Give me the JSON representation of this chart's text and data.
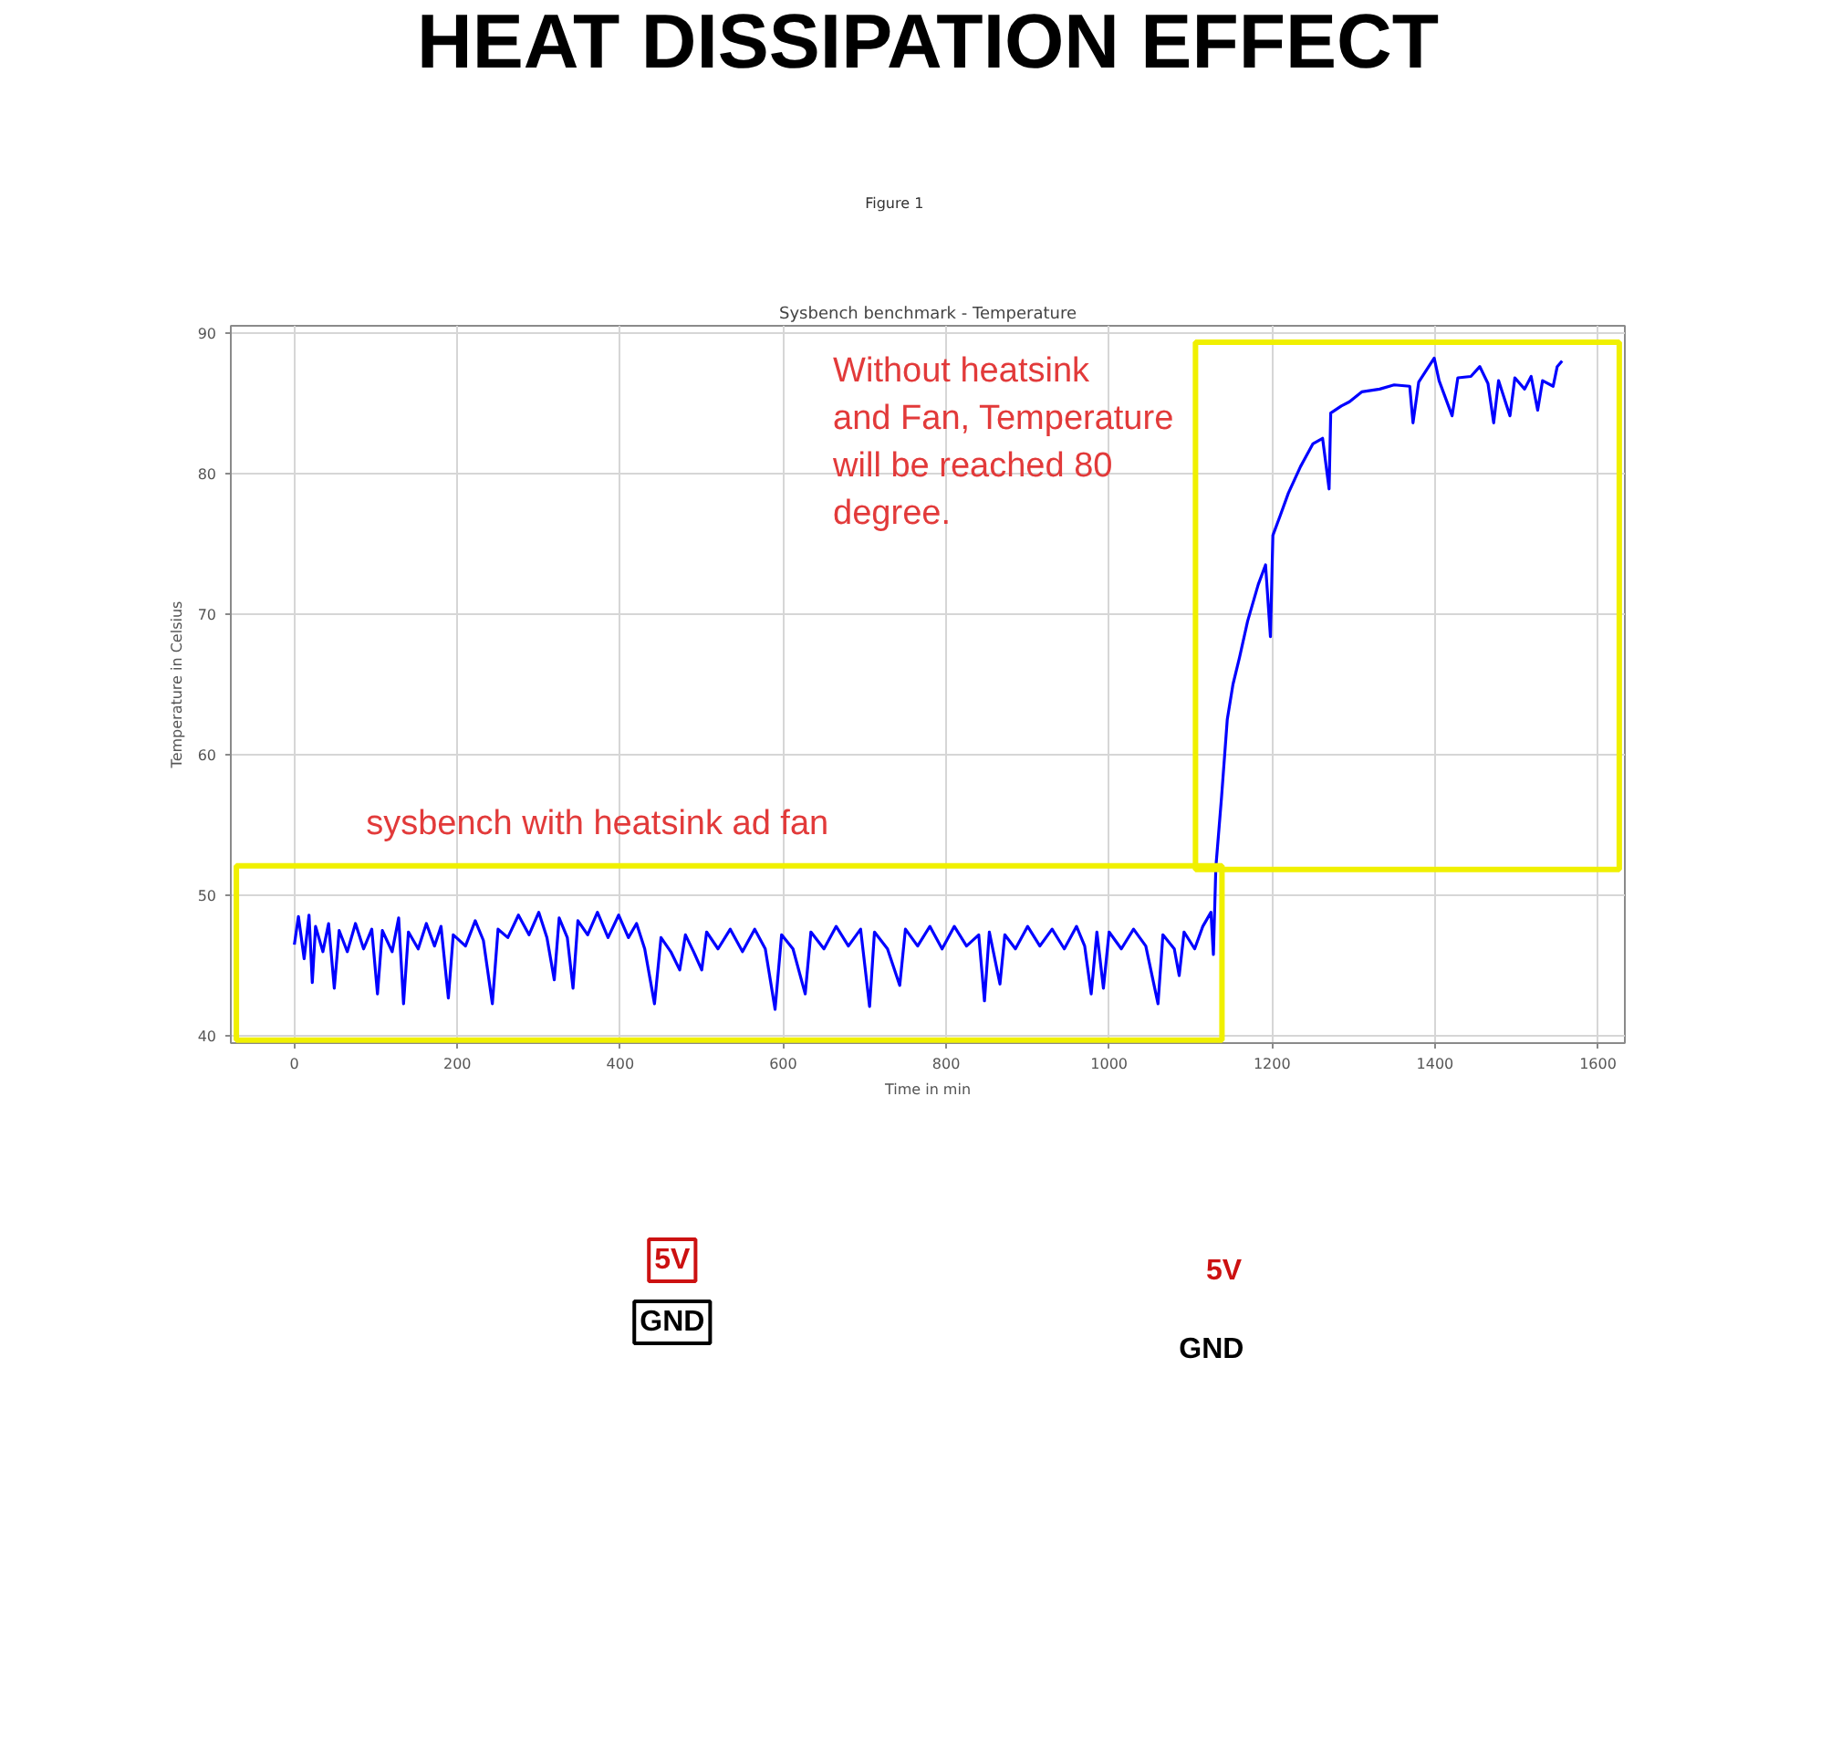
{
  "chart_data": {
    "type": "line",
    "title": "HEAT DISSIPATION EFFECT",
    "subtitle": "Sysbench benchmark - Temperature",
    "xlabel": "Time in min",
    "ylabel": "Temperature in Celsius",
    "annotations": [
      "Figure 1",
      "Without heatsink\nand Fan, Temperature\nwill be reached 80\ndegree.",
      "sysbench with heatsink ad fan",
      "5V",
      "GND",
      "5V",
      "GND"
    ],
    "x": [
      0,
      5,
      12,
      18,
      22,
      26,
      35,
      42,
      49,
      55,
      65,
      75,
      85,
      95,
      102,
      108,
      120,
      128,
      134,
      140,
      152,
      162,
      172,
      180,
      189,
      195,
      210,
      222,
      232,
      243,
      250,
      262,
      275,
      288,
      300,
      310,
      319,
      325,
      335,
      342,
      348,
      360,
      372,
      385,
      398,
      410,
      420,
      430,
      442,
      450,
      462,
      473,
      480,
      490,
      500,
      506,
      520,
      535,
      550,
      565,
      578,
      590,
      598,
      612,
      627,
      634,
      650,
      665,
      680,
      695,
      706,
      712,
      728,
      743,
      750,
      765,
      780,
      795,
      810,
      825,
      840,
      847,
      853,
      866,
      872,
      885,
      900,
      915,
      930,
      945,
      960,
      970,
      978,
      985,
      993,
      1000,
      1015,
      1030,
      1045,
      1060,
      1066,
      1080,
      1086,
      1092,
      1105,
      1115,
      1125,
      1128,
      1131,
      1138,
      1145,
      1152,
      1160,
      1170,
      1183,
      1192,
      1198,
      1201,
      1210,
      1220,
      1235,
      1250,
      1262,
      1270,
      1272,
      1285,
      1295,
      1310,
      1332,
      1350,
      1369,
      1373,
      1380,
      1399,
      1405,
      1421,
      1428,
      1444,
      1455,
      1465,
      1472,
      1478,
      1492,
      1498,
      1510,
      1518,
      1526,
      1532,
      1545,
      1550,
      1556
    ],
    "series": [
      {
        "color": "#0000ff",
        "values": [
          46.5,
          48.5,
          45.5,
          48.6,
          43.8,
          47.8,
          46.0,
          48.0,
          43.4,
          47.5,
          46.0,
          48.0,
          46.2,
          47.6,
          43.0,
          47.5,
          46.0,
          48.4,
          42.3,
          47.4,
          46.2,
          48.0,
          46.4,
          47.8,
          42.7,
          47.2,
          46.4,
          48.2,
          46.8,
          42.3,
          47.6,
          47.0,
          48.6,
          47.2,
          48.8,
          47.0,
          44.0,
          48.4,
          47.0,
          43.4,
          48.2,
          47.2,
          48.8,
          47.0,
          48.6,
          47.0,
          48.0,
          46.2,
          42.3,
          47.0,
          46.0,
          44.7,
          47.2,
          46.0,
          44.7,
          47.4,
          46.2,
          47.6,
          46.0,
          47.6,
          46.2,
          41.9,
          47.2,
          46.2,
          43.0,
          47.4,
          46.2,
          47.8,
          46.4,
          47.6,
          42.1,
          47.4,
          46.2,
          43.6,
          47.6,
          46.4,
          47.8,
          46.2,
          47.8,
          46.4,
          47.2,
          42.5,
          47.4,
          43.7,
          47.2,
          46.2,
          47.8,
          46.4,
          47.6,
          46.2,
          47.8,
          46.4,
          43.0,
          47.4,
          43.4,
          47.4,
          46.2,
          47.6,
          46.4,
          42.3,
          47.2,
          46.2,
          44.3,
          47.4,
          46.2,
          47.8,
          48.8,
          45.8,
          52.0,
          57.0,
          62.5,
          65.0,
          66.9,
          69.5,
          72.1,
          73.5,
          68.4,
          75.6,
          77.0,
          78.6,
          80.5,
          82.1,
          82.5,
          78.9,
          84.3,
          84.8,
          85.1,
          85.8,
          86.0,
          86.3,
          86.2,
          83.6,
          86.5,
          88.2,
          86.6,
          84.1,
          86.8,
          86.9,
          87.6,
          86.4,
          83.6,
          86.6,
          84.1,
          86.8,
          86.0,
          86.9,
          84.5,
          86.6,
          86.2,
          87.6,
          88.0
        ]
      }
    ],
    "xlim": [
      -78,
      1633
    ],
    "ylim": [
      39.5,
      90.5
    ],
    "xticks": [
      0,
      200,
      400,
      600,
      800,
      1000,
      1200,
      1400,
      1600
    ],
    "yticks": [
      40,
      50,
      60,
      70,
      80,
      90
    ],
    "grid": true,
    "line_style": "solid"
  }
}
